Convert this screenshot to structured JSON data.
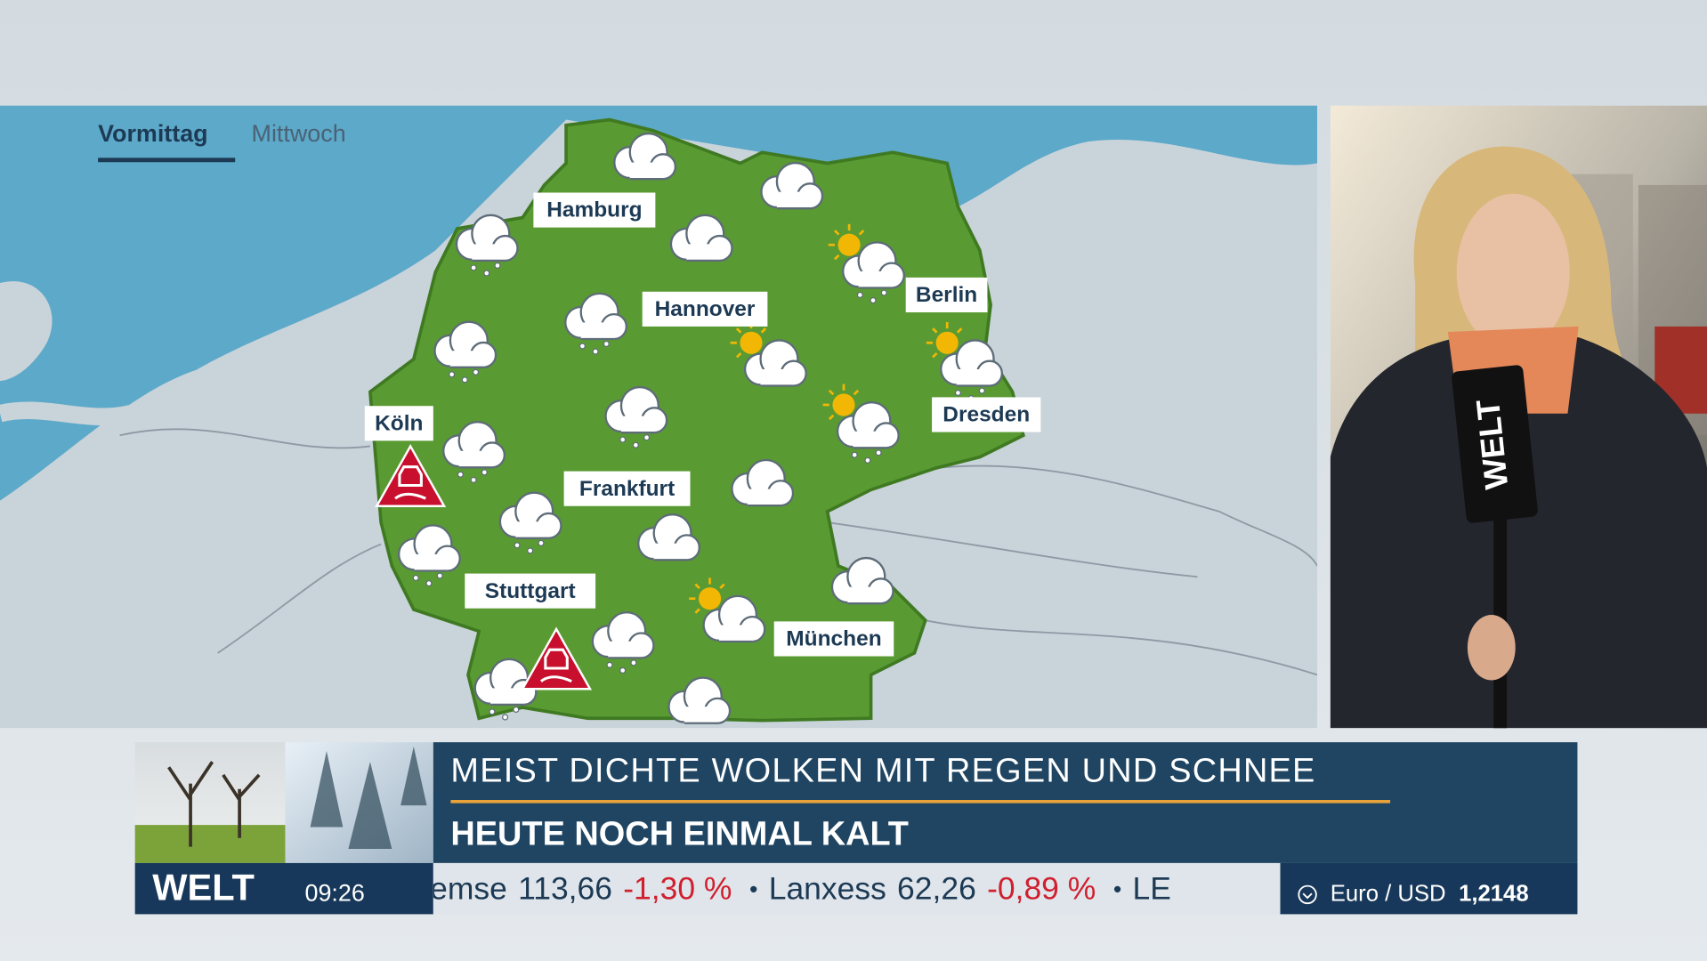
{
  "tabs": {
    "active": "Vormittag",
    "day": "Mittwoch"
  },
  "cities": [
    "Hamburg",
    "Hannover",
    "Berlin",
    "Köln",
    "Dresden",
    "Frankfurt",
    "Stuttgart",
    "München"
  ],
  "lower_third": {
    "headline": "MEIST DICHTE WOLKEN MIT REGEN UND SCHNEE",
    "subline": "HEUTE NOCH EINMAL KALT"
  },
  "ticker": {
    "logo": "WELT",
    "time": "09:26",
    "separator": "•",
    "items": [
      {
        "name": "emse",
        "price": "113,66",
        "change": "-1,30 %"
      },
      {
        "name": "Lanxess",
        "price": "62,26",
        "change": "-0,89 %"
      },
      {
        "name": "LE"
      }
    ],
    "currency": {
      "pair": "Euro / USD",
      "rate": "1,2148"
    }
  },
  "mic_label": "WELT"
}
